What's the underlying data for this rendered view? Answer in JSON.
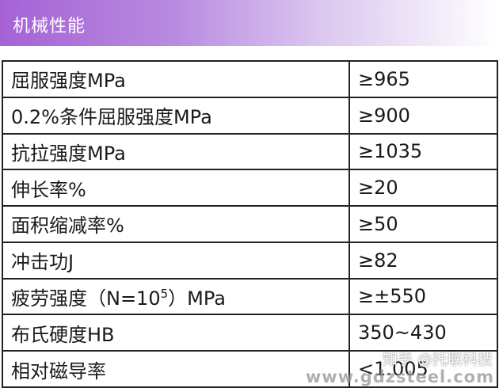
{
  "header": {
    "title": "机械性能"
  },
  "rows": [
    {
      "name": "屈服强度MPa",
      "value": "≥965"
    },
    {
      "name": "0.2%条件屈服强度MPa",
      "value": "≥900"
    },
    {
      "name": "抗拉强度MPa",
      "value": "≥1035"
    },
    {
      "name": "伸长率%",
      "value": "≥20"
    },
    {
      "name": "面积缩减率%",
      "value": "≥50"
    },
    {
      "name": "冲击功J",
      "value": "≥82"
    },
    {
      "name_prefix": "疲劳强度（N=10",
      "name_sup": "5",
      "name_suffix": "）MPa",
      "value": "≥±550"
    },
    {
      "name": "布氏硬度HB",
      "value": "350~430"
    },
    {
      "name": "相对磁导率",
      "value": "<1.005"
    }
  ],
  "watermark": {
    "zhihu": "知乎 @托联科技",
    "url": "www.gdzsteel.com"
  }
}
